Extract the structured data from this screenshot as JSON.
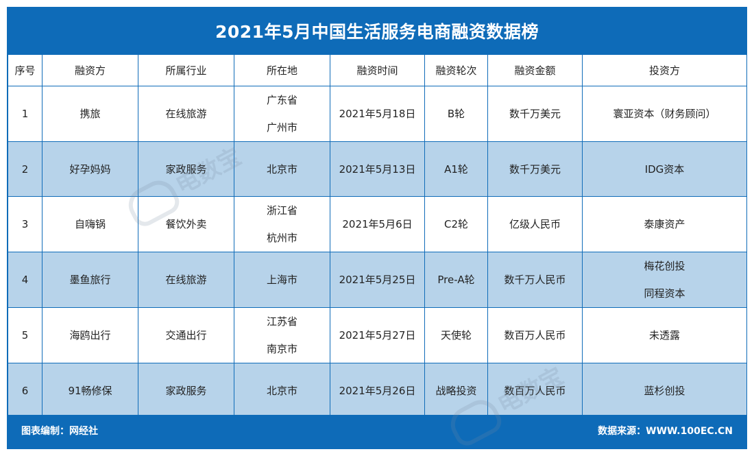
{
  "title": "2021年5月中国生活服务电商融资数据榜",
  "headers": [
    "序号",
    "融资方",
    "所属行业",
    "所在地",
    "融资时间",
    "融资轮次",
    "融资金额",
    "投资方"
  ],
  "rows": [
    {
      "no": "1",
      "company": "携旅",
      "industry": "在线旅游",
      "location": [
        "广东省",
        "广州市"
      ],
      "date": "2021年5月18日",
      "round": "B轮",
      "amount": "数千万美元",
      "investors": [
        "寰亚资本（财务顾问）"
      ]
    },
    {
      "no": "2",
      "company": "好孕妈妈",
      "industry": "家政服务",
      "location": [
        "北京市"
      ],
      "date": "2021年5月13日",
      "round": "A1轮",
      "amount": "数千万美元",
      "investors": [
        "IDG资本"
      ]
    },
    {
      "no": "3",
      "company": "自嗨锅",
      "industry": "餐饮外卖",
      "location": [
        "浙江省",
        "杭州市"
      ],
      "date": "2021年5月6日",
      "round": "C2轮",
      "amount": "亿级人民币",
      "investors": [
        "泰康资产"
      ]
    },
    {
      "no": "4",
      "company": "墨鱼旅行",
      "industry": "在线旅游",
      "location": [
        "上海市"
      ],
      "date": "2021年5月25日",
      "round": "Pre-A轮",
      "amount": "数千万人民币",
      "investors": [
        "梅花创投",
        "同程资本"
      ]
    },
    {
      "no": "5",
      "company": "海鸥出行",
      "industry": "交通出行",
      "location": [
        "江苏省",
        "南京市"
      ],
      "date": "2021年5月27日",
      "round": "天使轮",
      "amount": "数百万人民币",
      "investors": [
        "未透露"
      ]
    },
    {
      "no": "6",
      "company": "91畅修保",
      "industry": "家政服务",
      "location": [
        "北京市"
      ],
      "date": "2021年5月26日",
      "round": "战略投资",
      "amount": "数百万人民币",
      "investors": [
        "蓝杉创投"
      ]
    }
  ],
  "footer": {
    "left": "图表编制：网经社",
    "right": "数据来源：WWW.100EC.CN"
  },
  "watermark": "电数宝"
}
